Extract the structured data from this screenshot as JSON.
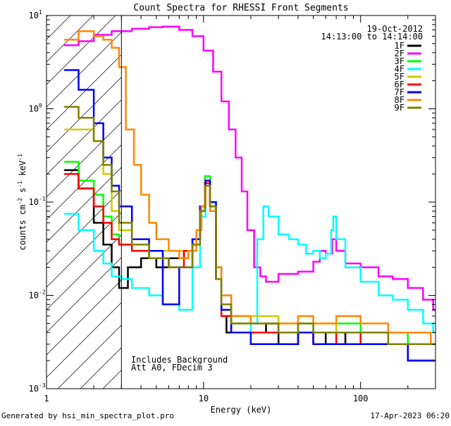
{
  "chart_data": {
    "type": "line",
    "title": "Count Spectra for RHESSI Front Segments",
    "xlabel": "Energy (keV)",
    "ylabel_parts": {
      "a": "counts cm",
      "b": "-2",
      "c": " s",
      "d": "-1",
      "e": " keV",
      "f": "-1"
    },
    "xscale": "log",
    "yscale": "log",
    "xlim": [
      1,
      300
    ],
    "ylim": [
      0.001,
      10
    ],
    "x_ticks": [
      {
        "v": 1,
        "label": "1"
      },
      {
        "v": 10,
        "label": "10"
      },
      {
        "v": 100,
        "label": "100"
      }
    ],
    "y_ticks": [
      {
        "v": 10,
        "label": "10",
        "exp": "1"
      },
      {
        "v": 1,
        "label": "10",
        "exp": "0"
      },
      {
        "v": 0.1,
        "label": "10",
        "exp": "-1"
      },
      {
        "v": 0.01,
        "label": "10",
        "exp": "-2"
      },
      {
        "v": 0.001,
        "label": "10",
        "exp": "-3"
      }
    ],
    "attenuator_cutoff_kev": 3,
    "info": {
      "date": "19-Oct-2012",
      "time_range": "14:13:00 to 14:14:00"
    },
    "annotations": [
      "Includes Background",
      "Att A0, FDecim 3"
    ],
    "series": [
      {
        "name": "1F",
        "color": "#000000",
        "points": [
          [
            1.3,
            0.22
          ],
          [
            1.6,
            0.14
          ],
          [
            2.0,
            0.06
          ],
          [
            2.3,
            0.035
          ],
          [
            2.6,
            0.02
          ],
          [
            2.9,
            0.012
          ],
          [
            3.3,
            0.02
          ],
          [
            4,
            0.025
          ],
          [
            5,
            0.02
          ],
          [
            6,
            0.025
          ],
          [
            7.5,
            0.03
          ],
          [
            8.5,
            0.04
          ],
          [
            9.5,
            0.08
          ],
          [
            10.2,
            0.15
          ],
          [
            11,
            0.09
          ],
          [
            12,
            0.015
          ],
          [
            13,
            0.006
          ],
          [
            14,
            0.004
          ],
          [
            18,
            0.004
          ],
          [
            25,
            0.005
          ],
          [
            30,
            0.003
          ],
          [
            40,
            0.004
          ],
          [
            50,
            0.003
          ],
          [
            60,
            0.004
          ],
          [
            80,
            0.003
          ],
          [
            100,
            0.003
          ],
          [
            150,
            0.003
          ],
          [
            200,
            0.002
          ],
          [
            280,
            0.002
          ]
        ]
      },
      {
        "name": "2F",
        "color": "#ff00ff",
        "points": [
          [
            1.3,
            4.8
          ],
          [
            1.6,
            5.3
          ],
          [
            2.0,
            6.2
          ],
          [
            2.6,
            6.8
          ],
          [
            3.5,
            7.2
          ],
          [
            4.5,
            7.5
          ],
          [
            5.5,
            7.6
          ],
          [
            7,
            7.0
          ],
          [
            8.5,
            6.0
          ],
          [
            10,
            4.2
          ],
          [
            11.5,
            2.5
          ],
          [
            13,
            1.2
          ],
          [
            14.5,
            0.6
          ],
          [
            16,
            0.3
          ],
          [
            17.5,
            0.13
          ],
          [
            19,
            0.05
          ],
          [
            21,
            0.02
          ],
          [
            23,
            0.016
          ],
          [
            25,
            0.014
          ],
          [
            30,
            0.017
          ],
          [
            40,
            0.018
          ],
          [
            50,
            0.023
          ],
          [
            55,
            0.03
          ],
          [
            60,
            0.028
          ],
          [
            66,
            0.04
          ],
          [
            70,
            0.03
          ],
          [
            80,
            0.022
          ],
          [
            100,
            0.02
          ],
          [
            130,
            0.016
          ],
          [
            160,
            0.015
          ],
          [
            200,
            0.012
          ],
          [
            250,
            0.009
          ],
          [
            290,
            0.007
          ]
        ]
      },
      {
        "name": "3F",
        "color": "#00ff00",
        "points": [
          [
            1.3,
            0.27
          ],
          [
            1.6,
            0.17
          ],
          [
            2.0,
            0.12
          ],
          [
            2.3,
            0.07
          ],
          [
            2.6,
            0.045
          ],
          [
            2.9,
            0.035
          ],
          [
            3.5,
            0.03
          ],
          [
            4.5,
            0.025
          ],
          [
            6,
            0.02
          ],
          [
            7.5,
            0.02
          ],
          [
            8.5,
            0.035
          ],
          [
            9.5,
            0.08
          ],
          [
            10.2,
            0.19
          ],
          [
            11,
            0.1
          ],
          [
            12,
            0.02
          ],
          [
            13,
            0.008
          ],
          [
            15,
            0.005
          ],
          [
            20,
            0.005
          ],
          [
            30,
            0.004
          ],
          [
            40,
            0.005
          ],
          [
            50,
            0.004
          ],
          [
            70,
            0.005
          ],
          [
            100,
            0.004
          ],
          [
            150,
            0.004
          ],
          [
            200,
            0.003
          ],
          [
            280,
            0.003
          ]
        ]
      },
      {
        "name": "4F",
        "color": "#00ffff",
        "points": [
          [
            1.3,
            0.075
          ],
          [
            1.6,
            0.05
          ],
          [
            2.0,
            0.03
          ],
          [
            2.3,
            0.022
          ],
          [
            2.6,
            0.016
          ],
          [
            3.0,
            0.015
          ],
          [
            3.5,
            0.012
          ],
          [
            4.5,
            0.01
          ],
          [
            5.5,
            0.008
          ],
          [
            7,
            0.007
          ],
          [
            8.5,
            0.02
          ],
          [
            9.5,
            0.07
          ],
          [
            10.3,
            0.15
          ],
          [
            11,
            0.08
          ],
          [
            12,
            0.015
          ],
          [
            13,
            0.006
          ],
          [
            15,
            0.004
          ],
          [
            18,
            0.004
          ],
          [
            20,
            0.005
          ],
          [
            22,
            0.04
          ],
          [
            24,
            0.09
          ],
          [
            26,
            0.07
          ],
          [
            30,
            0.045
          ],
          [
            35,
            0.04
          ],
          [
            40,
            0.035
          ],
          [
            45,
            0.028
          ],
          [
            50,
            0.03
          ],
          [
            55,
            0.025
          ],
          [
            60,
            0.028
          ],
          [
            65,
            0.05
          ],
          [
            67,
            0.07
          ],
          [
            70,
            0.04
          ],
          [
            80,
            0.02
          ],
          [
            100,
            0.014
          ],
          [
            130,
            0.01
          ],
          [
            160,
            0.009
          ],
          [
            200,
            0.007
          ],
          [
            250,
            0.005
          ],
          [
            290,
            0.004
          ]
        ]
      },
      {
        "name": "5F",
        "color": "#cccc00",
        "points": [
          [
            1.3,
            0.6
          ],
          [
            1.6,
            0.6
          ],
          [
            2.0,
            0.45
          ],
          [
            2.3,
            0.2
          ],
          [
            2.6,
            0.08
          ],
          [
            2.9,
            0.05
          ],
          [
            3.5,
            0.04
          ],
          [
            4.5,
            0.03
          ],
          [
            6,
            0.03
          ],
          [
            7.5,
            0.03
          ],
          [
            8.5,
            0.04
          ],
          [
            9.5,
            0.09
          ],
          [
            10.2,
            0.16
          ],
          [
            11,
            0.09
          ],
          [
            12,
            0.02
          ],
          [
            13,
            0.008
          ],
          [
            15,
            0.006
          ],
          [
            20,
            0.006
          ],
          [
            30,
            0.005
          ],
          [
            40,
            0.005
          ],
          [
            50,
            0.005
          ],
          [
            70,
            0.004
          ],
          [
            100,
            0.004
          ],
          [
            150,
            0.003
          ],
          [
            200,
            0.003
          ],
          [
            280,
            0.003
          ]
        ]
      },
      {
        "name": "6F",
        "color": "#ff0000",
        "points": [
          [
            1.3,
            0.2
          ],
          [
            1.6,
            0.14
          ],
          [
            2.0,
            0.09
          ],
          [
            2.3,
            0.06
          ],
          [
            2.6,
            0.04
          ],
          [
            2.9,
            0.035
          ],
          [
            3.5,
            0.03
          ],
          [
            4.5,
            0.025
          ],
          [
            6,
            0.02
          ],
          [
            7.5,
            0.03
          ],
          [
            8.5,
            0.04
          ],
          [
            9.5,
            0.09
          ],
          [
            10.2,
            0.16
          ],
          [
            11,
            0.09
          ],
          [
            12,
            0.015
          ],
          [
            13,
            0.006
          ],
          [
            15,
            0.004
          ],
          [
            20,
            0.004
          ],
          [
            30,
            0.004
          ],
          [
            40,
            0.004
          ],
          [
            50,
            0.003
          ],
          [
            70,
            0.004
          ],
          [
            100,
            0.003
          ],
          [
            150,
            0.003
          ],
          [
            200,
            0.002
          ],
          [
            280,
            0.002
          ]
        ]
      },
      {
        "name": "7F",
        "color": "#0000ff",
        "points": [
          [
            1.3,
            2.6
          ],
          [
            1.6,
            1.6
          ],
          [
            2.0,
            0.7
          ],
          [
            2.3,
            0.3
          ],
          [
            2.6,
            0.15
          ],
          [
            2.9,
            0.09
          ],
          [
            3.5,
            0.04
          ],
          [
            4.5,
            0.03
          ],
          [
            5.5,
            0.008
          ],
          [
            7,
            0.02
          ],
          [
            8.5,
            0.04
          ],
          [
            9.5,
            0.09
          ],
          [
            10.3,
            0.17
          ],
          [
            11,
            0.1
          ],
          [
            12,
            0.02
          ],
          [
            13,
            0.007
          ],
          [
            15,
            0.004
          ],
          [
            20,
            0.003
          ],
          [
            30,
            0.003
          ],
          [
            40,
            0.004
          ],
          [
            50,
            0.003
          ],
          [
            70,
            0.003
          ],
          [
            100,
            0.003
          ],
          [
            150,
            0.003
          ],
          [
            200,
            0.002
          ],
          [
            280,
            0.002
          ]
        ]
      },
      {
        "name": "8F",
        "color": "#ff8800",
        "points": [
          [
            1.3,
            5.5
          ],
          [
            1.6,
            6.8
          ],
          [
            2.0,
            6.0
          ],
          [
            2.3,
            5.5
          ],
          [
            2.6,
            4.5
          ],
          [
            2.9,
            2.8
          ],
          [
            3.2,
            0.6
          ],
          [
            3.6,
            0.25
          ],
          [
            4,
            0.12
          ],
          [
            4.5,
            0.06
          ],
          [
            5,
            0.04
          ],
          [
            6,
            0.03
          ],
          [
            7,
            0.025
          ],
          [
            8,
            0.03
          ],
          [
            9,
            0.05
          ],
          [
            9.7,
            0.09
          ],
          [
            10.3,
            0.15
          ],
          [
            11,
            0.08
          ],
          [
            12,
            0.02
          ],
          [
            13,
            0.01
          ],
          [
            15,
            0.006
          ],
          [
            20,
            0.005
          ],
          [
            30,
            0.005
          ],
          [
            40,
            0.006
          ],
          [
            50,
            0.005
          ],
          [
            70,
            0.006
          ],
          [
            100,
            0.005
          ],
          [
            150,
            0.004
          ],
          [
            200,
            0.004
          ],
          [
            280,
            0.003
          ]
        ]
      },
      {
        "name": "9F",
        "color": "#808000",
        "points": [
          [
            1.3,
            1.05
          ],
          [
            1.6,
            0.8
          ],
          [
            2.0,
            0.45
          ],
          [
            2.3,
            0.25
          ],
          [
            2.6,
            0.13
          ],
          [
            2.9,
            0.06
          ],
          [
            3.5,
            0.035
          ],
          [
            4.5,
            0.025
          ],
          [
            6,
            0.02
          ],
          [
            7.5,
            0.02
          ],
          [
            8.5,
            0.035
          ],
          [
            9.5,
            0.08
          ],
          [
            10.2,
            0.15
          ],
          [
            11,
            0.09
          ],
          [
            12,
            0.015
          ],
          [
            13,
            0.008
          ],
          [
            15,
            0.005
          ],
          [
            20,
            0.005
          ],
          [
            30,
            0.004
          ],
          [
            40,
            0.005
          ],
          [
            50,
            0.004
          ],
          [
            70,
            0.004
          ],
          [
            100,
            0.004
          ],
          [
            150,
            0.003
          ],
          [
            200,
            0.003
          ],
          [
            280,
            0.003
          ]
        ]
      }
    ]
  },
  "footer": {
    "generated_by": "Generated by hsi_min_spectra_plot.pro",
    "timestamp": "17-Apr-2023 06:20"
  }
}
